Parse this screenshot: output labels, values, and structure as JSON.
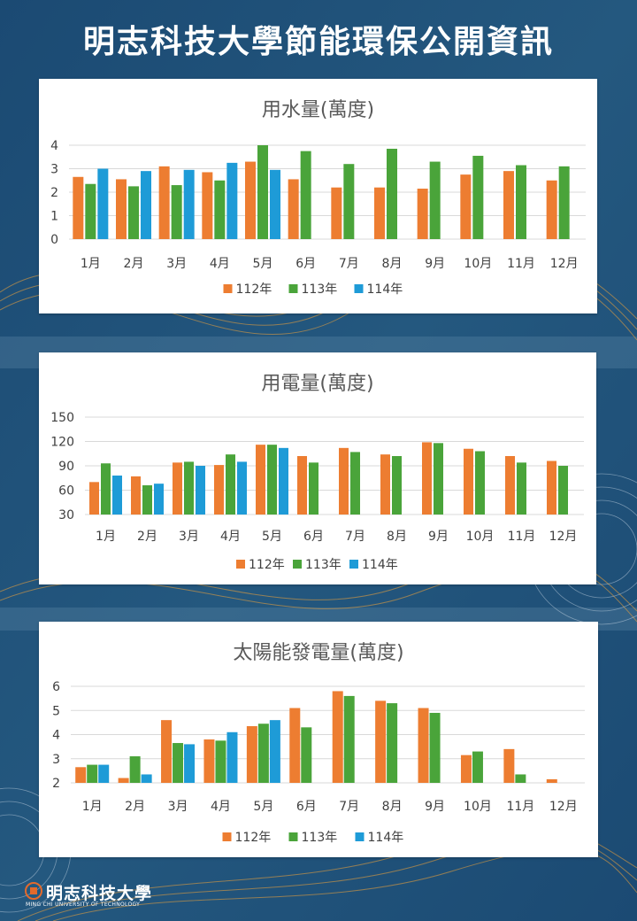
{
  "page": {
    "title": "明志科技大學節能環保公開資訊"
  },
  "colors": {
    "s112": "#ED7D31",
    "s113": "#4AA43A",
    "s114": "#1E9BD7",
    "grid": "#D9D9D9"
  },
  "chart_data": [
    {
      "id": "water",
      "type": "bar",
      "title": "用水量(萬度)",
      "categories": [
        "1月",
        "2月",
        "3月",
        "4月",
        "5月",
        "6月",
        "7月",
        "8月",
        "9月",
        "10月",
        "11月",
        "12月"
      ],
      "series": [
        {
          "name": "112年",
          "values": [
            2.65,
            2.55,
            3.1,
            2.85,
            3.3,
            2.55,
            2.2,
            2.2,
            2.15,
            2.75,
            2.9,
            2.5
          ]
        },
        {
          "name": "113年",
          "values": [
            2.35,
            2.25,
            2.3,
            2.5,
            4.0,
            3.75,
            3.2,
            3.85,
            3.3,
            3.55,
            3.15,
            3.1
          ]
        },
        {
          "name": "114年",
          "values": [
            3.0,
            2.9,
            2.95,
            3.25,
            2.95,
            null,
            null,
            null,
            null,
            null,
            null,
            null
          ]
        }
      ],
      "ylim": [
        0,
        4
      ],
      "yticks": [
        0,
        1,
        2,
        3,
        4
      ],
      "grid": true,
      "legend": "bottom"
    },
    {
      "id": "power",
      "type": "bar",
      "title": "用電量(萬度)",
      "categories": [
        "1月",
        "2月",
        "3月",
        "4月",
        "5月",
        "6月",
        "7月",
        "8月",
        "9月",
        "10月",
        "11月",
        "12月"
      ],
      "series": [
        {
          "name": "112年",
          "values": [
            70,
            77,
            94,
            91,
            116,
            102,
            112,
            104,
            119,
            111,
            102,
            96
          ]
        },
        {
          "name": "113年",
          "values": [
            93,
            66,
            95,
            104,
            116,
            94,
            107,
            102,
            118,
            108,
            94,
            90
          ]
        },
        {
          "name": "114年",
          "values": [
            78,
            68,
            90,
            95,
            112,
            null,
            null,
            null,
            null,
            null,
            null,
            null
          ]
        }
      ],
      "ylim": [
        30,
        150
      ],
      "yticks": [
        30,
        60,
        90,
        120,
        150
      ],
      "grid": true,
      "legend": "bottom"
    },
    {
      "id": "solar",
      "type": "bar",
      "title": "太陽能發電量(萬度)",
      "categories": [
        "1月",
        "2月",
        "3月",
        "4月",
        "5月",
        "6月",
        "7月",
        "8月",
        "9月",
        "10月",
        "11月",
        "12月"
      ],
      "series": [
        {
          "name": "112年",
          "values": [
            2.65,
            2.2,
            4.6,
            3.8,
            4.35,
            5.1,
            5.8,
            5.4,
            5.1,
            3.15,
            3.4,
            2.15
          ]
        },
        {
          "name": "113年",
          "values": [
            2.75,
            3.1,
            3.65,
            3.75,
            4.45,
            4.3,
            5.6,
            5.3,
            4.9,
            3.3,
            2.35,
            null
          ]
        },
        {
          "name": "114年",
          "values": [
            2.75,
            2.35,
            3.6,
            4.1,
            4.6,
            null,
            null,
            null,
            null,
            null,
            null,
            null
          ]
        }
      ],
      "ylim": [
        2,
        6
      ],
      "yticks": [
        2,
        3,
        4,
        5,
        6
      ],
      "grid": true,
      "legend": "bottom"
    }
  ],
  "logo": {
    "name": "明志科技大學",
    "english": "MING CHI UNIVERSITY OF TECHNOLOGY"
  }
}
